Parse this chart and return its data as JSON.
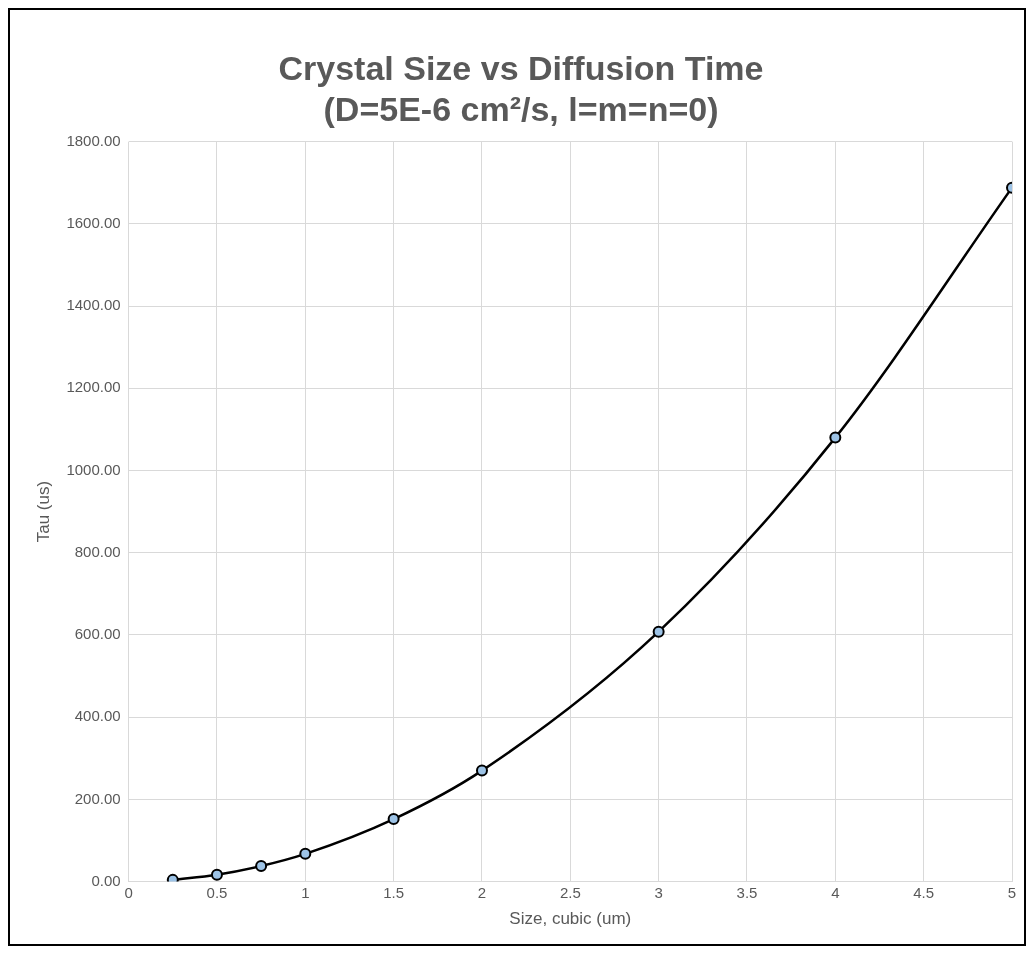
{
  "chart_data": {
    "type": "line",
    "title": "Crystal Size vs Diffusion Time",
    "subtitle": "(D=5E-6 cm²/s, l=m=n=0)",
    "xlabel": "Size, cubic (um)",
    "ylabel": "Tau (us)",
    "x": [
      0.25,
      0.5,
      0.75,
      1,
      1.5,
      2,
      3,
      4,
      5
    ],
    "series": [
      {
        "color": "#000000",
        "values": [
          4.2,
          16.9,
          38,
          67.5,
          152,
          270,
          608,
          1080,
          1688
        ]
      }
    ],
    "xlim": [
      0,
      5
    ],
    "xticks": [
      0,
      0.5,
      1,
      1.5,
      2,
      2.5,
      3,
      3.5,
      4,
      4.5,
      5
    ],
    "ylim": [
      0,
      1800
    ],
    "yticks": [
      {
        "value": 0,
        "label": "0.00"
      },
      {
        "value": 200,
        "label": "200.00"
      },
      {
        "value": 400,
        "label": "400.00"
      },
      {
        "value": 600,
        "label": "600.00"
      },
      {
        "value": 800,
        "label": "800.00"
      },
      {
        "value": 1000,
        "label": "1000.00"
      },
      {
        "value": 1200,
        "label": "1200.00"
      },
      {
        "value": 1400,
        "label": "1400.00"
      },
      {
        "value": 1600,
        "label": "1600.00"
      },
      {
        "value": 1800,
        "label": "1800.00"
      }
    ],
    "grid": true,
    "legend": false,
    "marker": "circle",
    "line_style": "solid"
  }
}
